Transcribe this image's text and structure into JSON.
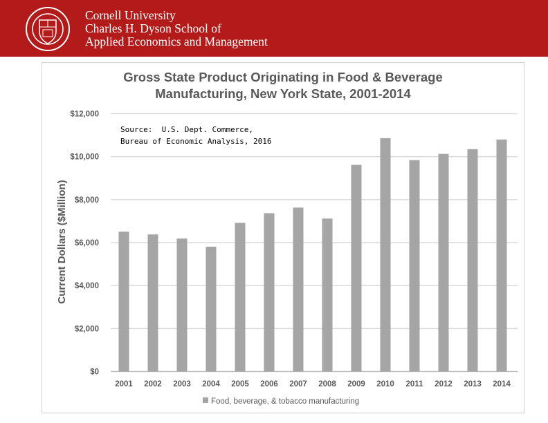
{
  "header": {
    "line1": "Cornell University",
    "line2": "Charles H. Dyson School of",
    "line3": "Applied Economics and Management",
    "brand_color": "#b31b1b"
  },
  "chart_data": {
    "type": "bar",
    "title_line1": "Gross State Product Originating in Food & Beverage",
    "title_line2": "Manufacturing, New York State, 2001-2014",
    "ylabel": "Current Dollars ($Million)",
    "xlabel": "",
    "ylim": [
      0,
      12000
    ],
    "yticks": [
      "$0",
      "$2,000",
      "$4,000",
      "$6,000",
      "$8,000",
      "$10,000",
      "$12,000"
    ],
    "grid": true,
    "legend_position": "bottom",
    "categories": [
      "2001",
      "2002",
      "2003",
      "2004",
      "2005",
      "2006",
      "2007",
      "2008",
      "2009",
      "2010",
      "2011",
      "2012",
      "2013",
      "2014"
    ],
    "series": [
      {
        "name": "Food, beverage, & tobacco manufacturing",
        "color": "#a5a5a5",
        "values": [
          6510,
          6380,
          6190,
          5810,
          6920,
          7370,
          7630,
          7120,
          9620,
          10860,
          9840,
          10130,
          10350,
          10800
        ]
      }
    ],
    "annotation_line1": "Source:  U.S. Dept. Commerce,",
    "annotation_line2": "Bureau of Economic Analysis, 2016"
  }
}
